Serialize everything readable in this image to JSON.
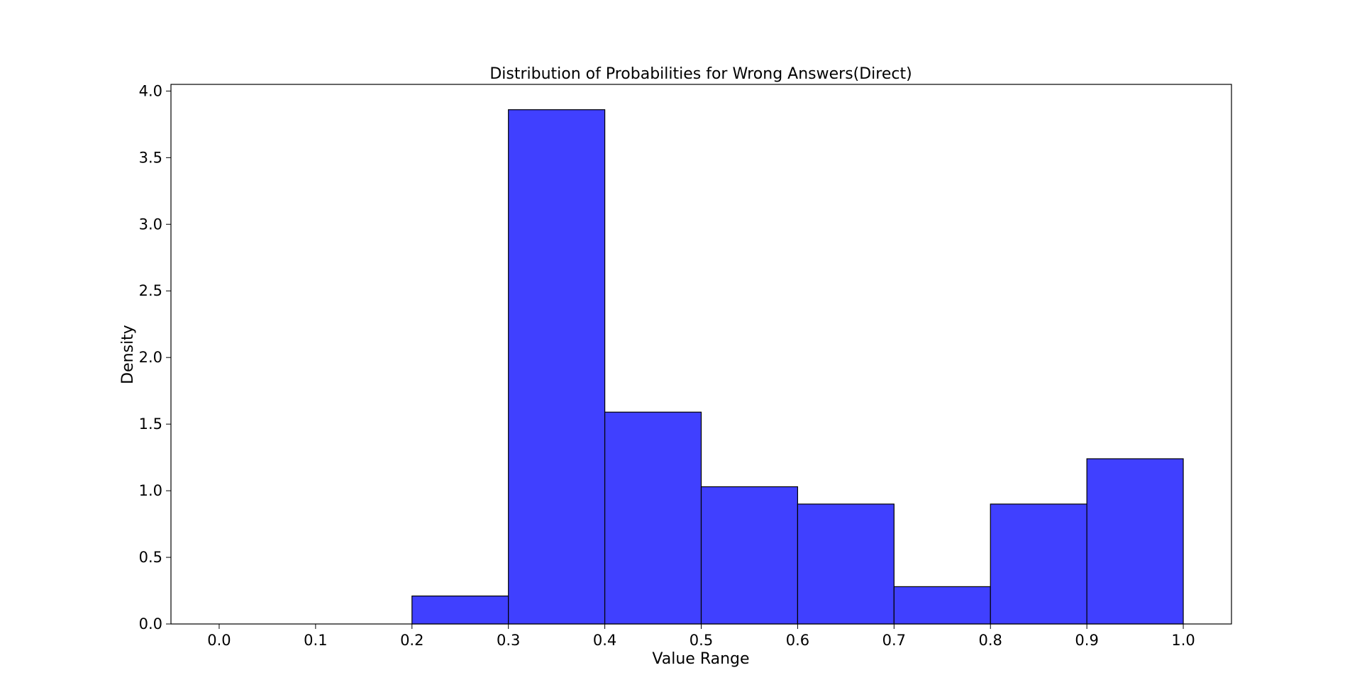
{
  "chart_data": {
    "type": "bar",
    "title": "Distribution of Probabilities for Wrong Answers(Direct)",
    "xlabel": "Value Range",
    "ylabel": "Density",
    "xlim": [
      -0.05,
      1.05
    ],
    "ylim": [
      0,
      4.05
    ],
    "x_ticks": [
      "0.0",
      "0.1",
      "0.2",
      "0.3",
      "0.4",
      "0.5",
      "0.6",
      "0.7",
      "0.8",
      "0.9",
      "1.0"
    ],
    "x_tick_values": [
      0.0,
      0.1,
      0.2,
      0.3,
      0.4,
      0.5,
      0.6,
      0.7,
      0.8,
      0.9,
      1.0
    ],
    "y_ticks": [
      "0.0",
      "0.5",
      "1.0",
      "1.5",
      "2.0",
      "2.5",
      "3.0",
      "3.5",
      "4.0"
    ],
    "y_tick_values": [
      0.0,
      0.5,
      1.0,
      1.5,
      2.0,
      2.5,
      3.0,
      3.5,
      4.0
    ],
    "bins": [
      {
        "start": 0.2,
        "end": 0.3,
        "value": 0.21
      },
      {
        "start": 0.3,
        "end": 0.4,
        "value": 3.86
      },
      {
        "start": 0.4,
        "end": 0.5,
        "value": 1.59
      },
      {
        "start": 0.5,
        "end": 0.6,
        "value": 1.03
      },
      {
        "start": 0.6,
        "end": 0.7,
        "value": 0.9
      },
      {
        "start": 0.7,
        "end": 0.8,
        "value": 0.28
      },
      {
        "start": 0.8,
        "end": 0.9,
        "value": 0.9
      },
      {
        "start": 0.9,
        "end": 1.0,
        "value": 1.24
      }
    ],
    "bar_color": "#4040ff",
    "edge_color": "#000000",
    "grid": false,
    "legend": false
  }
}
